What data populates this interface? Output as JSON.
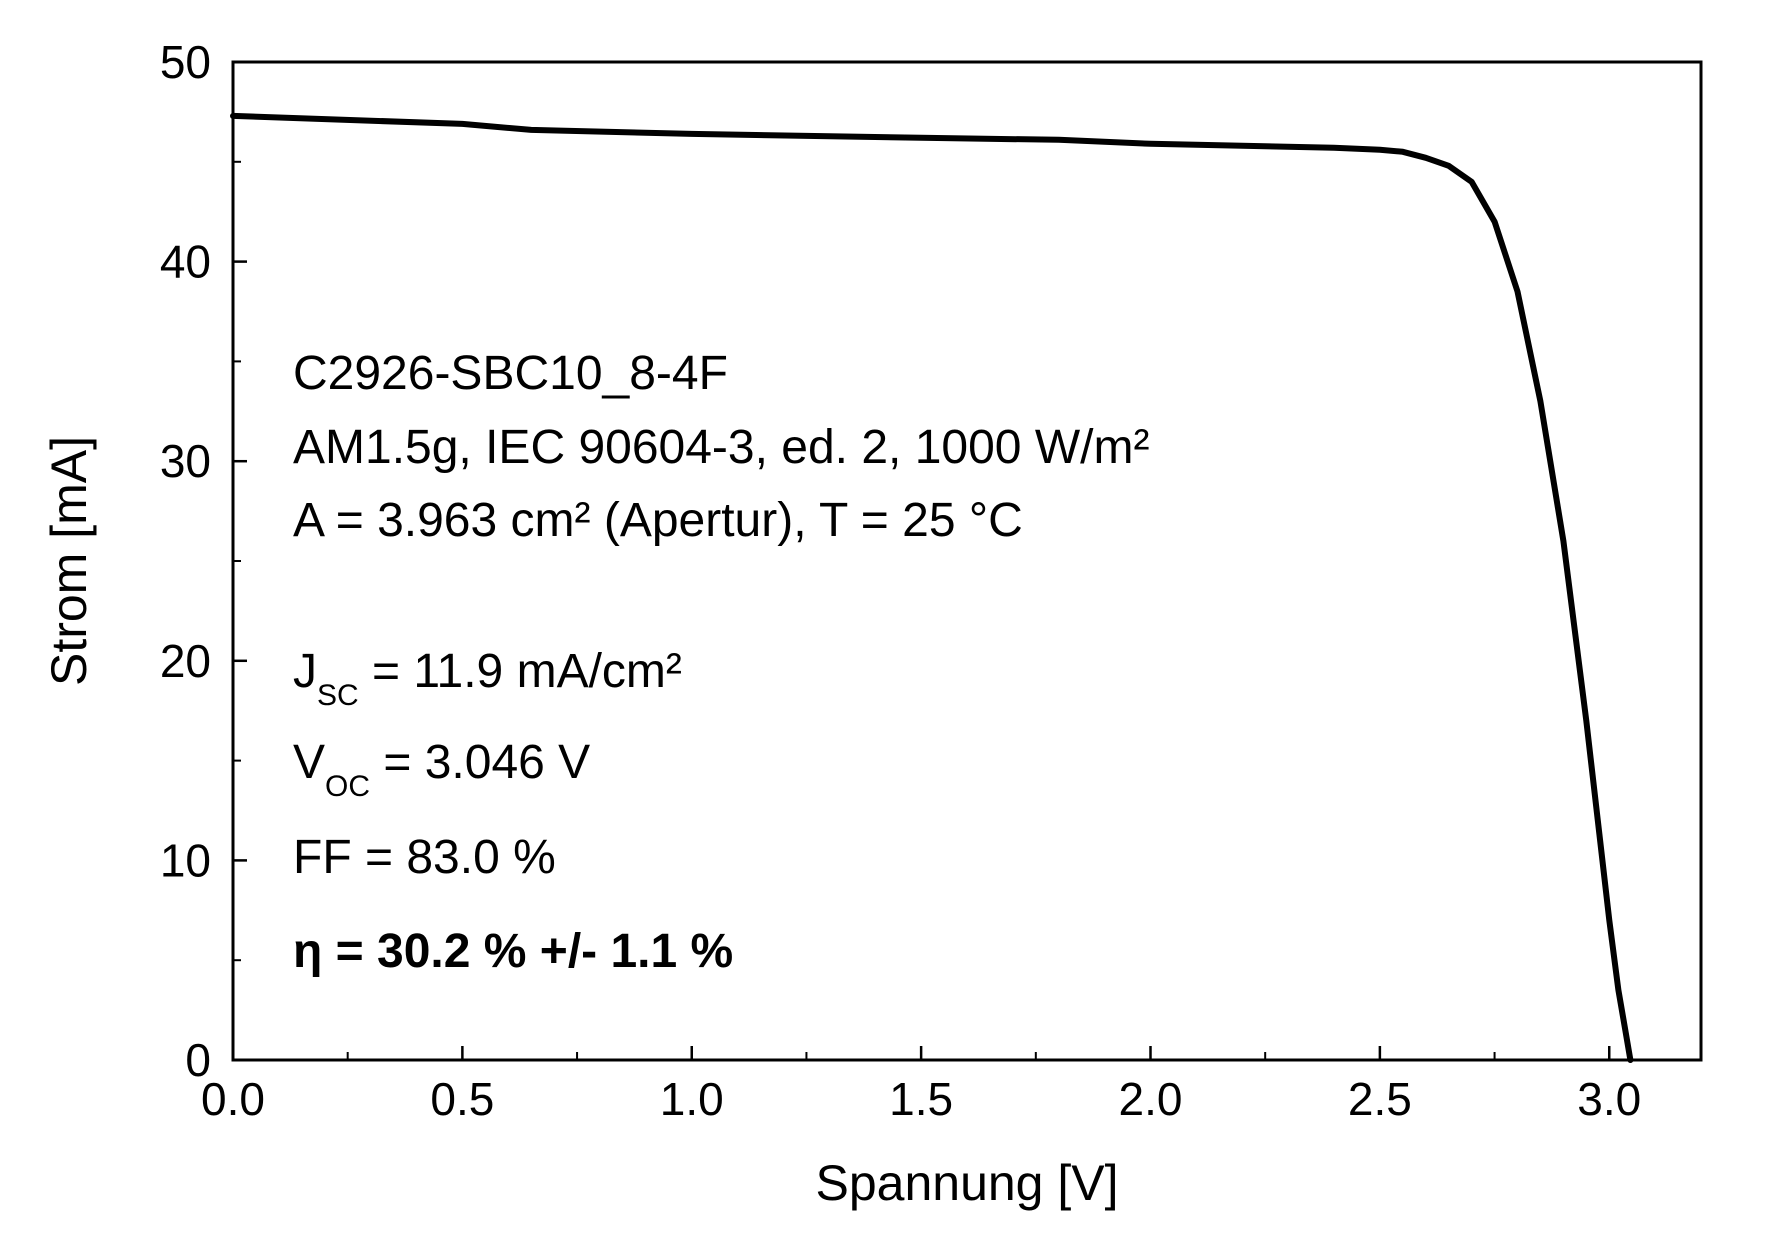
{
  "chart_data": {
    "type": "line",
    "title": "",
    "xlabel": "Spannung [V]",
    "ylabel": "Strom [mA]",
    "xlim": [
      0.0,
      3.2
    ],
    "ylim": [
      0,
      50
    ],
    "x_ticks": [
      0.0,
      0.5,
      1.0,
      1.5,
      2.0,
      2.5,
      3.0
    ],
    "x_tick_labels": [
      "0.0",
      "0.5",
      "1.0",
      "1.5",
      "2.0",
      "2.5",
      "3.0"
    ],
    "y_ticks": [
      0,
      10,
      20,
      30,
      40,
      50
    ],
    "y_tick_labels": [
      "0",
      "10",
      "20",
      "30",
      "40",
      "50"
    ],
    "grid": false,
    "legend": "none",
    "line_color": "#000000",
    "series": [
      {
        "x": [
          0.0,
          0.5,
          0.65,
          1.0,
          1.5,
          1.8,
          2.0,
          2.4,
          2.5,
          2.55,
          2.6,
          2.65,
          2.7,
          2.75,
          2.8,
          2.85,
          2.9,
          2.95,
          2.98,
          3.0,
          3.02,
          3.035,
          3.046
        ],
        "y": [
          47.3,
          46.9,
          46.6,
          46.4,
          46.2,
          46.1,
          45.9,
          45.7,
          45.6,
          45.5,
          45.2,
          44.8,
          44.0,
          42.0,
          38.5,
          33.0,
          26.0,
          17.0,
          11.0,
          7.0,
          3.5,
          1.5,
          0.0
        ]
      }
    ],
    "annotations": {
      "sample": "C2926-SBC10_8-4F",
      "conditions": "AM1.5g, IEC 90604-3, ed. 2, 1000 W/m²",
      "area": "A = 3.963 cm² (Apertur), T = 25 °C",
      "jsc_symbol": "J",
      "jsc_sub": "SC",
      "jsc_value": " = 11.9 mA/cm²",
      "voc_symbol": "V",
      "voc_sub": "OC",
      "voc_value": " = 3.046 V",
      "ff": "FF = 83.0 %",
      "efficiency": "η = 30.2 % +/- 1.1 %"
    }
  }
}
